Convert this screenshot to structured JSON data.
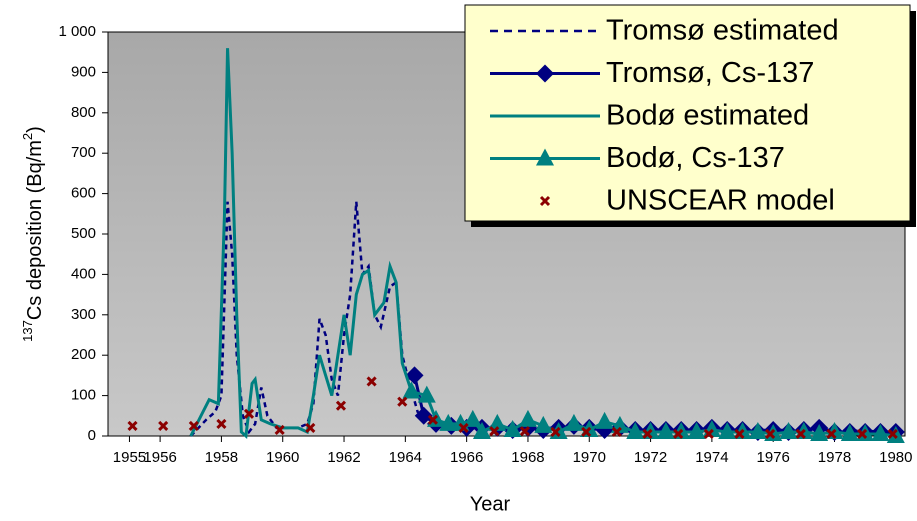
{
  "chart_data": {
    "type": "line",
    "y_label": {
      "sup1": "137",
      "main": "Cs deposition (Bq/m",
      "sup2": "2",
      "end": ")"
    },
    "x_label": "Year",
    "xlim": [
      1954.3,
      1980.3
    ],
    "xticks": [
      1955,
      1956,
      1958,
      1960,
      1962,
      1964,
      1966,
      1968,
      1970,
      1972,
      1974,
      1976,
      1978,
      1980
    ],
    "ylim": [
      0,
      1000
    ],
    "yticks": [
      0,
      100,
      200,
      300,
      400,
      500,
      600,
      700,
      800,
      900,
      {
        "value": 1000,
        "label": "1 000"
      }
    ],
    "background": "#c8c8c8",
    "legend": "top-right",
    "series": [
      {
        "name": "Tromsø estimated",
        "color": "#000080",
        "dash": true,
        "marker": "none",
        "x": [
          1957.0,
          1957.5,
          1957.8,
          1958.0,
          1958.2,
          1958.35,
          1958.5,
          1958.7,
          1958.9,
          1959.1,
          1959.3,
          1959.5,
          1959.8,
          1960.0,
          1960.5,
          1960.8,
          1961.0,
          1961.2,
          1961.4,
          1961.6,
          1961.8,
          1962.0,
          1962.2,
          1962.4,
          1962.6,
          1962.8,
          1963.0,
          1963.2,
          1963.5,
          1963.7,
          1963.9,
          1964.1,
          1964.4,
          1964.7,
          1965.0,
          1966,
          1968,
          1970,
          1972,
          1974,
          1976,
          1978,
          1980
        ],
        "values": [
          0,
          40,
          60,
          100,
          580,
          450,
          200,
          50,
          10,
          30,
          120,
          50,
          20,
          20,
          20,
          30,
          80,
          290,
          250,
          140,
          100,
          250,
          350,
          580,
          400,
          420,
          300,
          270,
          370,
          380,
          200,
          140,
          60,
          40,
          30,
          20,
          20,
          20,
          15,
          15,
          15,
          15,
          10
        ]
      },
      {
        "name": "Tromsø, Cs-137",
        "color": "#000080",
        "dash": false,
        "marker": "diamond",
        "x": [
          1964.3,
          1964.6,
          1965.0,
          1965.5,
          1966,
          1966.5,
          1967,
          1967.5,
          1968,
          1968.5,
          1969,
          1969.5,
          1970,
          1970.5,
          1971,
          1971.5,
          1972,
          1972.5,
          1973,
          1973.5,
          1974,
          1974.5,
          1975,
          1975.5,
          1976,
          1976.5,
          1977,
          1977.5,
          1978,
          1978.5,
          1979,
          1979.5,
          1980
        ],
        "values": [
          150,
          50,
          30,
          25,
          20,
          20,
          20,
          15,
          20,
          15,
          20,
          25,
          20,
          15,
          20,
          15,
          15,
          15,
          15,
          15,
          20,
          15,
          15,
          10,
          15,
          10,
          15,
          20,
          10,
          10,
          10,
          10,
          10
        ]
      },
      {
        "name": "Bodø estimated",
        "color": "#008080",
        "dash": false,
        "marker": "none",
        "x": [
          1957.0,
          1957.4,
          1957.6,
          1957.9,
          1958.1,
          1958.2,
          1958.35,
          1958.5,
          1958.65,
          1958.8,
          1959.0,
          1959.1,
          1959.3,
          1959.6,
          1960.0,
          1960.5,
          1960.8,
          1961.0,
          1961.2,
          1961.4,
          1961.6,
          1961.8,
          1962.0,
          1962.2,
          1962.4,
          1962.6,
          1962.8,
          1963.0,
          1963.3,
          1963.5,
          1963.7,
          1963.9,
          1964.2
        ],
        "values": [
          0,
          60,
          90,
          80,
          550,
          960,
          700,
          300,
          10,
          0,
          130,
          140,
          40,
          30,
          20,
          20,
          10,
          100,
          200,
          150,
          100,
          200,
          300,
          200,
          350,
          400,
          410,
          300,
          330,
          420,
          380,
          180,
          110
        ]
      },
      {
        "name": "Bodø, Cs-137",
        "color": "#008080",
        "dash": false,
        "marker": "triangle",
        "x": [
          1964.2,
          1964.7,
          1965.0,
          1965.4,
          1965.8,
          1966.2,
          1966.5,
          1967,
          1967.5,
          1968,
          1968.5,
          1969,
          1969.5,
          1970,
          1970.5,
          1971,
          1971.5,
          1972,
          1972.5,
          1973,
          1973.5,
          1974,
          1974.5,
          1975,
          1975.5,
          1976,
          1976.5,
          1977,
          1977.5,
          1978,
          1978.5,
          1979,
          1979.5,
          1980
        ],
        "values": [
          110,
          100,
          40,
          30,
          30,
          40,
          10,
          30,
          15,
          40,
          25,
          10,
          30,
          15,
          35,
          25,
          10,
          10,
          10,
          10,
          10,
          15,
          10,
          10,
          10,
          5,
          10,
          10,
          5,
          10,
          5,
          5,
          5,
          0
        ]
      },
      {
        "name": "UNSCEAR model",
        "color": "#8b0000",
        "dash": false,
        "marker": "x",
        "line": false,
        "x": [
          1955.1,
          1956.1,
          1957.1,
          1958.0,
          1958.9,
          1959.9,
          1960.9,
          1961.9,
          1962.9,
          1963.9,
          1964.9,
          1965.9,
          1966.9,
          1967.9,
          1968.9,
          1969.9,
          1970.9,
          1971.9,
          1972.9,
          1973.9,
          1974.9,
          1975.9,
          1976.9,
          1977.9,
          1978.9,
          1979.9
        ],
        "values": [
          25,
          25,
          25,
          30,
          55,
          15,
          20,
          75,
          135,
          85,
          40,
          20,
          12,
          12,
          10,
          10,
          10,
          5,
          5,
          5,
          5,
          5,
          5,
          5,
          5,
          5
        ]
      }
    ]
  }
}
